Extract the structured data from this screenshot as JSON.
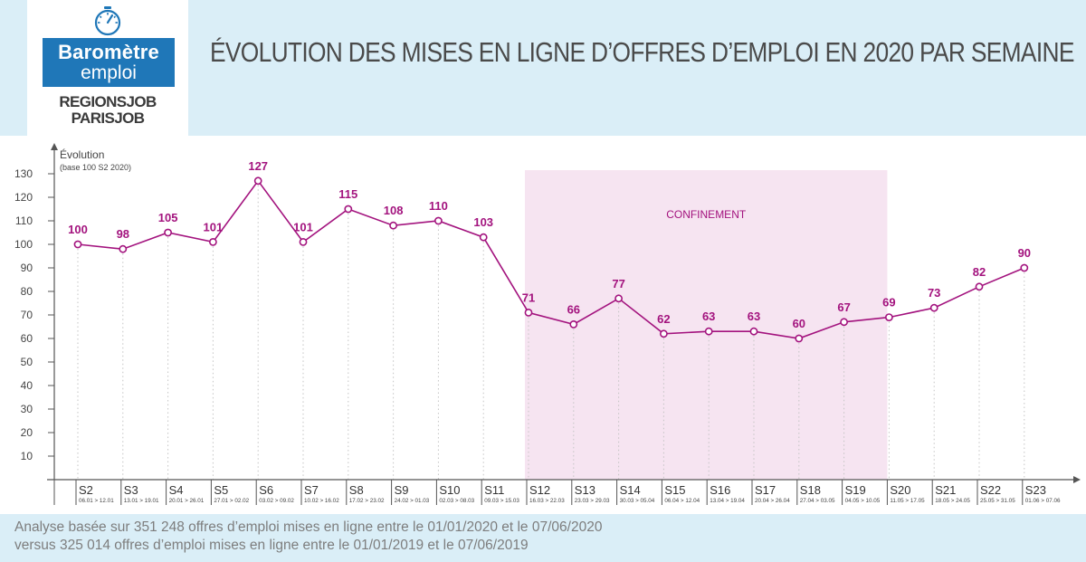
{
  "header": {
    "title": "ÉVOLUTION DES MISES EN LIGNE D’OFFRES D’EMPLOI EN 2020 PAR SEMAINE",
    "logo": {
      "line1": "Baromètre",
      "line2": "emploi",
      "brand1": "REGIONSJOB",
      "brand2": "PARISJOB"
    }
  },
  "colors": {
    "header_bg": "#daeef7",
    "logo_blue": "#1f77b8",
    "series": "#a3137e",
    "confinement_band": "#f6e4f1"
  },
  "icons": {
    "logo": "barometer-gauge-icon"
  },
  "chart_data": {
    "type": "line",
    "ylabel": "Évolution",
    "ylabel_sub": "(base 100 S2 2020)",
    "ylim": [
      0,
      130
    ],
    "yticks": [
      10,
      20,
      30,
      40,
      50,
      60,
      70,
      80,
      90,
      100,
      110,
      120,
      130
    ],
    "grid": "vertical dotted lines at each week",
    "legend": "none",
    "categories": [
      "S2",
      "S3",
      "S4",
      "S5",
      "S6",
      "S7",
      "S8",
      "S9",
      "S10",
      "S11",
      "S12",
      "S13",
      "S14",
      "S15",
      "S16",
      "S17",
      "S18",
      "S19",
      "S20",
      "S21",
      "S22",
      "S23"
    ],
    "date_ranges": [
      "06.01 > 12.01",
      "13.01 > 19.01",
      "20.01 > 26.01",
      "27.01 > 02.02",
      "03.02 > 09.02",
      "10.02 > 16.02",
      "17.02 > 23.02",
      "24.02 > 01.03",
      "02.03 > 08.03",
      "09.03 > 15.03",
      "16.03 > 22.03",
      "23.03 > 29.03",
      "30.03 > 05.04",
      "06.04 > 12.04",
      "13.04 > 19.04",
      "20.04 > 26.04",
      "27.04 > 03.05",
      "04.05 > 10.05",
      "11.05 > 17.05",
      "18.05 > 24.05",
      "25.05 > 31.05",
      "01.06 > 07.06"
    ],
    "values": [
      100,
      98,
      105,
      101,
      127,
      101,
      115,
      108,
      110,
      103,
      71,
      66,
      77,
      62,
      63,
      63,
      60,
      67,
      69,
      73,
      82,
      90
    ],
    "annotation": {
      "label": "CONFINEMENT",
      "start": "S12",
      "end": "S20"
    }
  },
  "footer": {
    "line1": "Analyse basée sur 351 248 offres d’emploi mises en ligne entre le 01/01/2020 et le 07/06/2020",
    "line2": "versus 325 014 offres d’emploi mises en ligne entre le 01/01/2019 et le 07/06/2019"
  }
}
